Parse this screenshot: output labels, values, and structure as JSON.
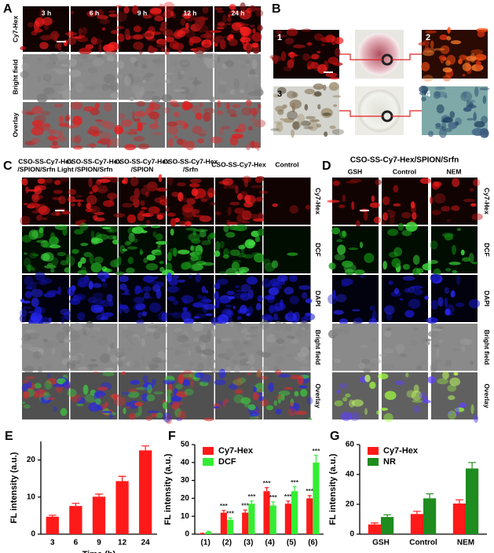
{
  "panels": {
    "A": {
      "letter": "A",
      "columns": [
        "3 h",
        "6 h",
        "9 h",
        "12 h",
        "24 h"
      ],
      "rows": [
        "Cy7-Hex",
        "Bright field",
        "Overlay"
      ]
    },
    "B": {
      "letter": "B",
      "images": [
        "1",
        "2",
        "3",
        "4"
      ]
    },
    "C": {
      "letter": "C",
      "columns": [
        [
          "CSO-SS-Cy7-Hex",
          "/SPION/Srfn Light"
        ],
        [
          "CSO-SS-Cy7-Hex",
          "/SPION/Srfn"
        ],
        [
          "CSO-SS-Cy7-Hex",
          "/SPION"
        ],
        [
          "CSO-SS-Cy7-Hex",
          "/Srfn"
        ],
        [
          "CSO-SS-Cy7-Hex"
        ],
        [
          "Control"
        ]
      ],
      "rows": [
        "Cy7-Hex",
        "DCF",
        "DAPI",
        "Bright field",
        "Overlay"
      ]
    },
    "D": {
      "letter": "D",
      "title": "CSO-SS-Cy7-Hex/SPION/Srfn",
      "columns": [
        "GSH",
        "Control",
        "NEM"
      ],
      "rows": [
        "Cy7-Hex",
        "DCF",
        "DAPI",
        "Bright field",
        "Overlay"
      ]
    }
  },
  "chart_data": [
    {
      "type": "bar",
      "panel_label": "E",
      "x_label": "Time (h)",
      "y_label": "FL intensity (a.u.)",
      "categories": [
        "3",
        "6",
        "9",
        "12",
        "24"
      ],
      "values": [
        4.7,
        7.6,
        10.1,
        14.3,
        22.6
      ],
      "errors": [
        0.4,
        0.7,
        0.7,
        1.3,
        1.2
      ],
      "color": "#ff1a1a",
      "ylim": [
        0,
        25
      ],
      "yticks": [
        0,
        10,
        20
      ]
    },
    {
      "type": "bar",
      "panel_label": "F",
      "y_label": "FL intensity (a.u.)",
      "categories": [
        "(1)",
        "(2)",
        "(3)",
        "(4)",
        "(5)",
        "(6)"
      ],
      "series": [
        {
          "name": "Cy7-Hex",
          "color": "#ff1a1a",
          "values": [
            0.3,
            12,
            12,
            24,
            17,
            20
          ],
          "errors": [
            0.2,
            1.2,
            1.5,
            2,
            1.5,
            1.5
          ],
          "annotations": [
            null,
            "***",
            "***",
            "***",
            "***",
            "***"
          ]
        },
        {
          "name": "DCF",
          "color": "#33ee33",
          "values": [
            1.2,
            8,
            17,
            16,
            24,
            40
          ],
          "errors": [
            0.4,
            1,
            1.5,
            2,
            2.5,
            4
          ],
          "annotations": [
            null,
            "***",
            "***",
            "***",
            "***",
            "***"
          ]
        }
      ],
      "ylim": [
        0,
        50
      ],
      "yticks": [
        0,
        10,
        20,
        30,
        40,
        50
      ],
      "legend": "upper left"
    },
    {
      "type": "bar",
      "panel_label": "G",
      "y_label": "FL intensity (a.u.)",
      "categories": [
        "GSH",
        "Control",
        "NEM"
      ],
      "series": [
        {
          "name": "Cy7-Hex",
          "color": "#ff1a1a",
          "values": [
            6.5,
            13.5,
            20.5
          ],
          "errors": [
            1,
            1.8,
            2.5
          ]
        },
        {
          "name": "NR",
          "color": "#1e8c1e",
          "values": [
            11.5,
            24,
            44
          ],
          "errors": [
            1.5,
            3,
            4
          ]
        }
      ],
      "ylim": [
        0,
        60
      ],
      "yticks": [
        0,
        20,
        40,
        60
      ],
      "legend": "upper left"
    }
  ]
}
